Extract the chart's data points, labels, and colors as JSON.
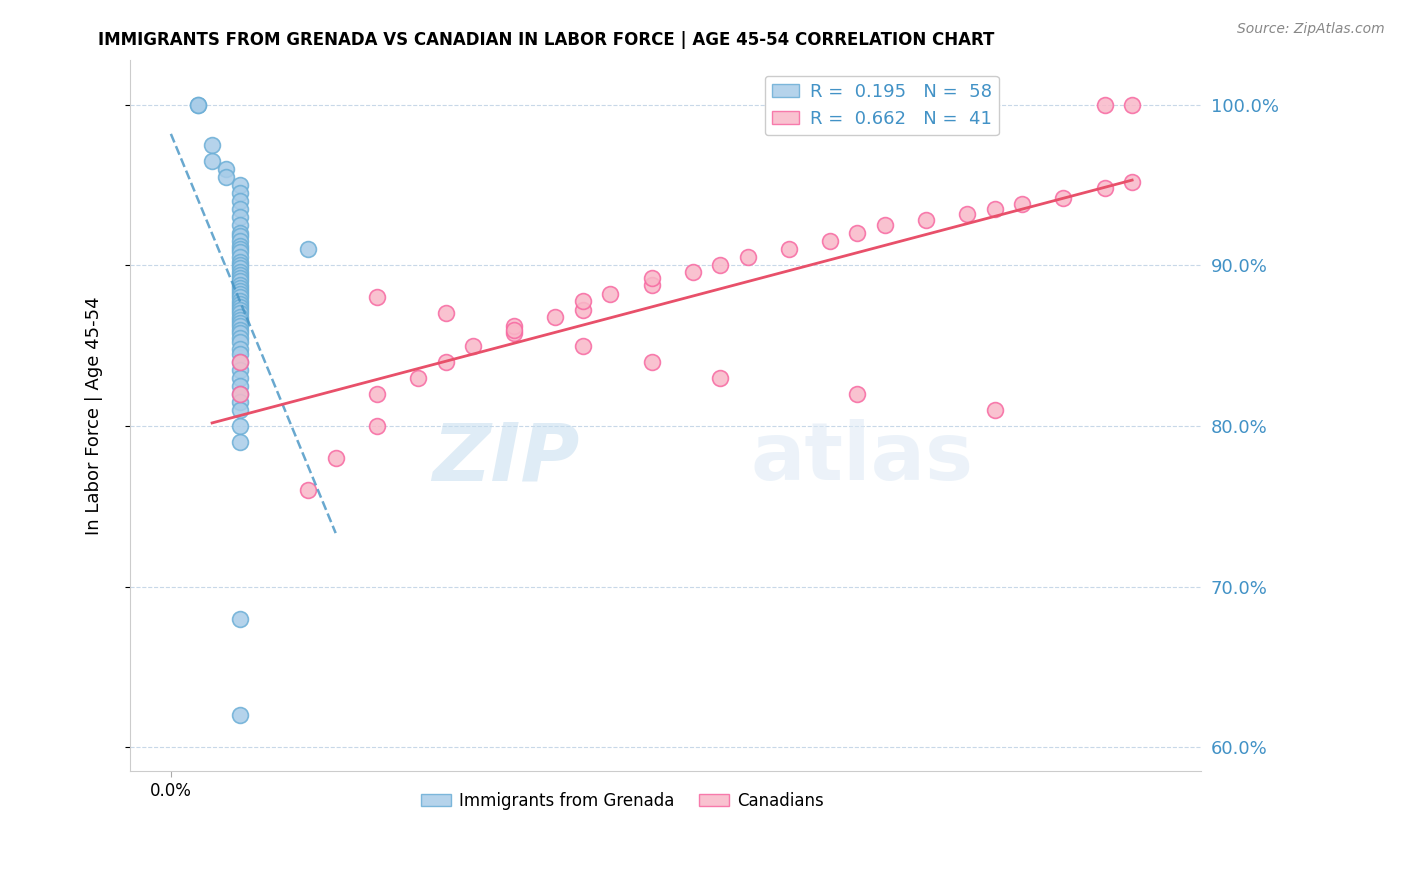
{
  "title": "IMMIGRANTS FROM GRENADA VS CANADIAN IN LABOR FORCE | AGE 45-54 CORRELATION CHART",
  "source": "Source: ZipAtlas.com",
  "ylabel": "In Labor Force | Age 45-54",
  "legend_r1": "R =  0.195",
  "legend_n1": "N =  58",
  "legend_r2": "R =  0.662",
  "legend_n2": "N =  41",
  "color_blue": "#a8cce8",
  "color_blue_edge": "#6baed6",
  "color_pink": "#f9b8c8",
  "color_pink_edge": "#f768a1",
  "color_blue_line": "#4393c3",
  "color_pink_line": "#e8506a",
  "color_axis_right": "#4292c6",
  "watermark_zip": "ZIP",
  "watermark_atlas": "atlas",
  "blue_x": [
    0.0002,
    0.0002,
    0.0003,
    0.0003,
    0.0004,
    0.0004,
    0.0005,
    0.0005,
    0.0005,
    0.0005,
    0.0005,
    0.0005,
    0.0005,
    0.0005,
    0.0005,
    0.0005,
    0.0005,
    0.0005,
    0.0005,
    0.0005,
    0.0005,
    0.0005,
    0.0005,
    0.0005,
    0.0005,
    0.0005,
    0.0005,
    0.0005,
    0.0005,
    0.0005,
    0.0005,
    0.0005,
    0.0005,
    0.0005,
    0.0005,
    0.0005,
    0.0005,
    0.0005,
    0.0005,
    0.0005,
    0.0005,
    0.0005,
    0.0005,
    0.0005,
    0.0005,
    0.0005,
    0.0005,
    0.0005,
    0.0005,
    0.0005,
    0.0005,
    0.001,
    0.0005,
    0.0005,
    0.0005,
    0.0005,
    0.0005,
    0.0005
  ],
  "blue_y": [
    1.0,
    1.0,
    0.975,
    0.965,
    0.96,
    0.955,
    0.95,
    0.945,
    0.94,
    0.935,
    0.93,
    0.925,
    0.92,
    0.918,
    0.915,
    0.912,
    0.91,
    0.908,
    0.905,
    0.902,
    0.9,
    0.898,
    0.896,
    0.894,
    0.892,
    0.89,
    0.888,
    0.886,
    0.884,
    0.882,
    0.88,
    0.878,
    0.876,
    0.874,
    0.872,
    0.87,
    0.868,
    0.866,
    0.864,
    0.862,
    0.86,
    0.858,
    0.855,
    0.852,
    0.848,
    0.845,
    0.84,
    0.835,
    0.83,
    0.825,
    0.82,
    0.91,
    0.815,
    0.81,
    0.8,
    0.79,
    0.68,
    0.62
  ],
  "pink_x": [
    0.0005,
    0.0005,
    0.001,
    0.0012,
    0.0015,
    0.0015,
    0.0018,
    0.002,
    0.0022,
    0.0025,
    0.0025,
    0.0028,
    0.003,
    0.003,
    0.0032,
    0.0035,
    0.0035,
    0.0038,
    0.004,
    0.0042,
    0.0045,
    0.0048,
    0.005,
    0.0052,
    0.0055,
    0.0058,
    0.006,
    0.0062,
    0.0065,
    0.0068,
    0.007,
    0.0015,
    0.002,
    0.0025,
    0.003,
    0.0035,
    0.004,
    0.005,
    0.006,
    0.0068,
    0.007
  ],
  "pink_y": [
    0.82,
    0.84,
    0.76,
    0.78,
    0.8,
    0.82,
    0.83,
    0.84,
    0.85,
    0.858,
    0.862,
    0.868,
    0.872,
    0.878,
    0.882,
    0.888,
    0.892,
    0.896,
    0.9,
    0.905,
    0.91,
    0.915,
    0.92,
    0.925,
    0.928,
    0.932,
    0.935,
    0.938,
    0.942,
    0.948,
    0.952,
    0.88,
    0.87,
    0.86,
    0.85,
    0.84,
    0.83,
    0.82,
    0.81,
    1.0,
    1.0
  ]
}
